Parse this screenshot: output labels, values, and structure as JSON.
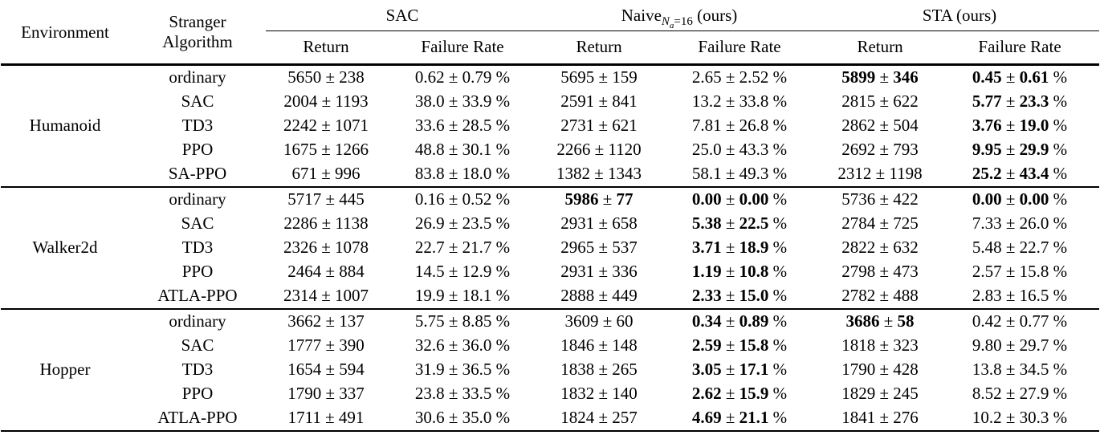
{
  "table": {
    "pm": " ± ",
    "pct_suffix": " %",
    "text_color": "#000000",
    "background_color": "#ffffff",
    "headers": {
      "environment": "Environment",
      "stranger_line1": "Stranger",
      "stranger_line2": "Algorithm",
      "sub_return": "Return",
      "sub_failure": "Failure Rate",
      "groups": [
        {
          "label": "SAC"
        },
        {
          "main": "Naive",
          "sub_var": "N",
          "sub_sub": "a",
          "sub_eq": "=16",
          "suffix": " (ours)"
        },
        {
          "label": "STA (ours)"
        }
      ]
    },
    "column_semantics": [
      "sac-return",
      "sac-failure-rate",
      "naive-return",
      "naive-failure-rate",
      "sta-return",
      "sta-failure-rate"
    ],
    "blocks": [
      {
        "environment": "Humanoid",
        "rows": [
          {
            "stranger": "ordinary",
            "cells": [
              {
                "a": "5650",
                "b": "238",
                "bold": false
              },
              {
                "a": "0.62",
                "b": "0.79",
                "bold": false
              },
              {
                "a": "5695",
                "b": "159",
                "bold": false
              },
              {
                "a": "2.65",
                "b": "2.52",
                "bold": false
              },
              {
                "a": "5899",
                "b": "346",
                "bold": true
              },
              {
                "a": "0.45",
                "b": "0.61",
                "bold": true
              }
            ]
          },
          {
            "stranger": "SAC",
            "cells": [
              {
                "a": "2004",
                "b": "1193",
                "bold": false
              },
              {
                "a": "38.0",
                "b": "33.9",
                "bold": false
              },
              {
                "a": "2591",
                "b": "841",
                "bold": false
              },
              {
                "a": "13.2",
                "b": "33.8",
                "bold": false
              },
              {
                "a": "2815",
                "b": "622",
                "bold": false
              },
              {
                "a": "5.77",
                "b": "23.3",
                "bold": true
              }
            ]
          },
          {
            "stranger": "TD3",
            "cells": [
              {
                "a": "2242",
                "b": "1071",
                "bold": false
              },
              {
                "a": "33.6",
                "b": "28.5",
                "bold": false
              },
              {
                "a": "2731",
                "b": "621",
                "bold": false
              },
              {
                "a": "7.81",
                "b": "26.8",
                "bold": false
              },
              {
                "a": "2862",
                "b": "504",
                "bold": false
              },
              {
                "a": "3.76",
                "b": "19.0",
                "bold": true
              }
            ]
          },
          {
            "stranger": "PPO",
            "cells": [
              {
                "a": "1675",
                "b": "1266",
                "bold": false
              },
              {
                "a": "48.8",
                "b": "30.1",
                "bold": false
              },
              {
                "a": "2266",
                "b": "1120",
                "bold": false
              },
              {
                "a": "25.0",
                "b": "43.3",
                "bold": false
              },
              {
                "a": "2692",
                "b": "793",
                "bold": false
              },
              {
                "a": "9.95",
                "b": "29.9",
                "bold": true
              }
            ]
          },
          {
            "stranger": "SA-PPO",
            "cells": [
              {
                "a": "671",
                "b": "996",
                "bold": false
              },
              {
                "a": "83.8",
                "b": "18.0",
                "bold": false
              },
              {
                "a": "1382",
                "b": "1343",
                "bold": false
              },
              {
                "a": "58.1",
                "b": "49.3",
                "bold": false
              },
              {
                "a": "2312",
                "b": "1198",
                "bold": false
              },
              {
                "a": "25.2",
                "b": "43.4",
                "bold": true
              }
            ]
          }
        ]
      },
      {
        "environment": "Walker2d",
        "rows": [
          {
            "stranger": "ordinary",
            "cells": [
              {
                "a": "5717",
                "b": "445",
                "bold": false
              },
              {
                "a": "0.16",
                "b": "0.52",
                "bold": false
              },
              {
                "a": "5986",
                "b": "77",
                "bold": true
              },
              {
                "a": "0.00",
                "b": "0.00",
                "bold": true
              },
              {
                "a": "5736",
                "b": "422",
                "bold": false
              },
              {
                "a": "0.00",
                "b": "0.00",
                "bold": true
              }
            ]
          },
          {
            "stranger": "SAC",
            "cells": [
              {
                "a": "2286",
                "b": "1138",
                "bold": false
              },
              {
                "a": "26.9",
                "b": "23.5",
                "bold": false
              },
              {
                "a": "2931",
                "b": "658",
                "bold": false
              },
              {
                "a": "5.38",
                "b": "22.5",
                "bold": true
              },
              {
                "a": "2784",
                "b": "725",
                "bold": false
              },
              {
                "a": "7.33",
                "b": "26.0",
                "bold": false
              }
            ]
          },
          {
            "stranger": "TD3",
            "cells": [
              {
                "a": "2326",
                "b": "1078",
                "bold": false
              },
              {
                "a": "22.7",
                "b": "21.7",
                "bold": false
              },
              {
                "a": "2965",
                "b": "537",
                "bold": false
              },
              {
                "a": "3.71",
                "b": "18.9",
                "bold": true
              },
              {
                "a": "2822",
                "b": "632",
                "bold": false
              },
              {
                "a": "5.48",
                "b": "22.7",
                "bold": false
              }
            ]
          },
          {
            "stranger": "PPO",
            "cells": [
              {
                "a": "2464",
                "b": "884",
                "bold": false
              },
              {
                "a": "14.5",
                "b": "12.9",
                "bold": false
              },
              {
                "a": "2931",
                "b": "336",
                "bold": false
              },
              {
                "a": "1.19",
                "b": "10.8",
                "bold": true
              },
              {
                "a": "2798",
                "b": "473",
                "bold": false
              },
              {
                "a": "2.57",
                "b": "15.8",
                "bold": false
              }
            ]
          },
          {
            "stranger": "ATLA-PPO",
            "cells": [
              {
                "a": "2314",
                "b": "1007",
                "bold": false
              },
              {
                "a": "19.9",
                "b": "18.1",
                "bold": false
              },
              {
                "a": "2888",
                "b": "449",
                "bold": false
              },
              {
                "a": "2.33",
                "b": "15.0",
                "bold": true
              },
              {
                "a": "2782",
                "b": "488",
                "bold": false
              },
              {
                "a": "2.83",
                "b": "16.5",
                "bold": false
              }
            ]
          }
        ]
      },
      {
        "environment": "Hopper",
        "rows": [
          {
            "stranger": "ordinary",
            "cells": [
              {
                "a": "3662",
                "b": "137",
                "bold": false
              },
              {
                "a": "5.75",
                "b": "8.85",
                "bold": false
              },
              {
                "a": "3609",
                "b": "60",
                "bold": false
              },
              {
                "a": "0.34",
                "b": "0.89",
                "bold": true
              },
              {
                "a": "3686",
                "b": "58",
                "bold": true
              },
              {
                "a": "0.42",
                "b": "0.77",
                "bold": false
              }
            ]
          },
          {
            "stranger": "SAC",
            "cells": [
              {
                "a": "1777",
                "b": "390",
                "bold": false
              },
              {
                "a": "32.6",
                "b": "36.0",
                "bold": false
              },
              {
                "a": "1846",
                "b": "148",
                "bold": false
              },
              {
                "a": "2.59",
                "b": "15.8",
                "bold": true
              },
              {
                "a": "1818",
                "b": "323",
                "bold": false
              },
              {
                "a": "9.80",
                "b": "29.7",
                "bold": false
              }
            ]
          },
          {
            "stranger": "TD3",
            "cells": [
              {
                "a": "1654",
                "b": "594",
                "bold": false
              },
              {
                "a": "31.9",
                "b": "36.5",
                "bold": false
              },
              {
                "a": "1838",
                "b": "265",
                "bold": false
              },
              {
                "a": "3.05",
                "b": "17.1",
                "bold": true
              },
              {
                "a": "1790",
                "b": "428",
                "bold": false
              },
              {
                "a": "13.8",
                "b": "34.5",
                "bold": false
              }
            ]
          },
          {
            "stranger": "PPO",
            "cells": [
              {
                "a": "1790",
                "b": "337",
                "bold": false
              },
              {
                "a": "23.8",
                "b": "33.5",
                "bold": false
              },
              {
                "a": "1832",
                "b": "140",
                "bold": false
              },
              {
                "a": "2.62",
                "b": "15.9",
                "bold": true
              },
              {
                "a": "1829",
                "b": "245",
                "bold": false
              },
              {
                "a": "8.52",
                "b": "27.9",
                "bold": false
              }
            ]
          },
          {
            "stranger": "ATLA-PPO",
            "cells": [
              {
                "a": "1711",
                "b": "491",
                "bold": false
              },
              {
                "a": "30.6",
                "b": "35.0",
                "bold": false
              },
              {
                "a": "1824",
                "b": "257",
                "bold": false
              },
              {
                "a": "4.69",
                "b": "21.1",
                "bold": true
              },
              {
                "a": "1841",
                "b": "276",
                "bold": false
              },
              {
                "a": "10.2",
                "b": "30.3",
                "bold": false
              }
            ]
          }
        ]
      }
    ]
  }
}
